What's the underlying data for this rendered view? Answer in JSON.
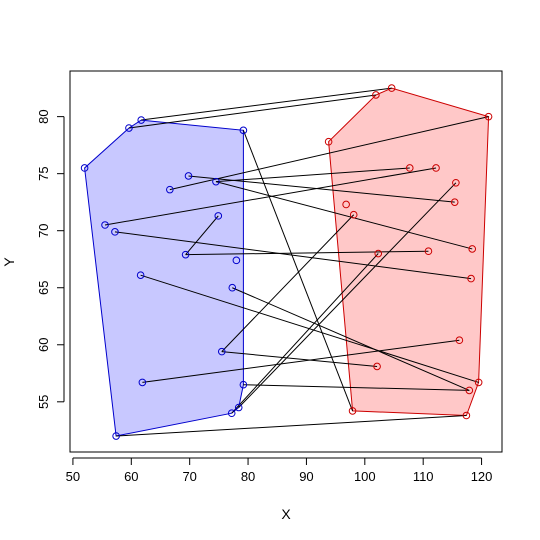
{
  "chart_data": {
    "type": "scatter",
    "title": "",
    "xlabel": "X",
    "ylabel": "Y",
    "xlim": [
      49.5,
      123.5
    ],
    "ylim": [
      50.6,
      84.0
    ],
    "x_ticks": [
      50,
      60,
      70,
      80,
      90,
      100,
      110,
      120
    ],
    "y_ticks": [
      55,
      60,
      65,
      70,
      75,
      80
    ],
    "grid": false,
    "colors": {
      "blue_fill": "#c8c8ff",
      "blue_stroke": "#0000cc",
      "red_fill": "#ffc8c8",
      "red_stroke": "#cc0000",
      "segment": "#000000"
    },
    "series": [
      {
        "group": "blue",
        "hull": true,
        "points": [
          [
            52.0,
            75.5
          ],
          [
            59.6,
            79.0
          ],
          [
            61.7,
            79.7
          ],
          [
            66.6,
            73.6
          ],
          [
            69.8,
            74.8
          ],
          [
            74.5,
            74.3
          ],
          [
            79.2,
            78.8
          ],
          [
            74.9,
            71.3
          ],
          [
            69.3,
            67.9
          ],
          [
            55.5,
            70.5
          ],
          [
            57.2,
            69.9
          ],
          [
            61.6,
            66.1
          ],
          [
            78.0,
            67.4
          ],
          [
            77.3,
            65.0
          ],
          [
            75.5,
            59.4
          ],
          [
            79.2,
            56.5
          ],
          [
            78.4,
            54.5
          ],
          [
            77.2,
            54.0
          ],
          [
            61.9,
            56.7
          ],
          [
            57.4,
            52.0
          ]
        ]
      },
      {
        "group": "red",
        "hull": true,
        "points": [
          [
            104.6,
            82.5
          ],
          [
            101.9,
            81.9
          ],
          [
            121.2,
            80.0
          ],
          [
            93.8,
            77.8
          ],
          [
            107.7,
            75.5
          ],
          [
            112.2,
            75.5
          ],
          [
            115.6,
            74.2
          ],
          [
            96.8,
            72.3
          ],
          [
            115.4,
            72.5
          ],
          [
            98.1,
            71.4
          ],
          [
            118.4,
            68.4
          ],
          [
            102.3,
            68.0
          ],
          [
            110.9,
            68.2
          ],
          [
            118.2,
            65.8
          ],
          [
            116.2,
            60.4
          ],
          [
            102.1,
            58.1
          ],
          [
            119.5,
            56.7
          ],
          [
            117.9,
            56.0
          ],
          [
            97.9,
            54.2
          ],
          [
            117.4,
            53.8
          ]
        ]
      }
    ],
    "segments": [
      [
        [
          61.7,
          79.7
        ],
        [
          104.6,
          82.5
        ]
      ],
      [
        [
          59.6,
          79.0
        ],
        [
          101.9,
          81.9
        ]
      ],
      [
        [
          66.6,
          73.6
        ],
        [
          121.2,
          80.0
        ]
      ],
      [
        [
          74.5,
          74.3
        ],
        [
          107.7,
          75.5
        ]
      ],
      [
        [
          69.8,
          74.8
        ],
        [
          115.4,
          72.5
        ]
      ],
      [
        [
          74.5,
          74.3
        ],
        [
          118.4,
          68.4
        ]
      ],
      [
        [
          55.5,
          70.5
        ],
        [
          112.2,
          75.5
        ]
      ],
      [
        [
          57.2,
          69.9
        ],
        [
          118.2,
          65.8
        ]
      ],
      [
        [
          69.3,
          67.9
        ],
        [
          110.9,
          68.2
        ]
      ],
      [
        [
          61.6,
          66.1
        ],
        [
          119.5,
          56.7
        ]
      ],
      [
        [
          77.3,
          65.0
        ],
        [
          117.9,
          56.0
        ]
      ],
      [
        [
          79.2,
          78.8
        ],
        [
          97.9,
          54.2
        ]
      ],
      [
        [
          74.9,
          71.3
        ],
        [
          69.3,
          67.9
        ]
      ],
      [
        [
          75.5,
          59.4
        ],
        [
          98.1,
          71.4
        ]
      ],
      [
        [
          78.4,
          54.5
        ],
        [
          115.6,
          74.2
        ]
      ],
      [
        [
          77.2,
          54.0
        ],
        [
          102.3,
          68.0
        ]
      ],
      [
        [
          79.2,
          56.5
        ],
        [
          117.9,
          56.0
        ]
      ],
      [
        [
          61.9,
          56.7
        ],
        [
          116.2,
          60.4
        ]
      ],
      [
        [
          57.4,
          52.0
        ],
        [
          117.4,
          53.8
        ]
      ],
      [
        [
          75.5,
          59.4
        ],
        [
          102.1,
          58.1
        ]
      ]
    ]
  }
}
